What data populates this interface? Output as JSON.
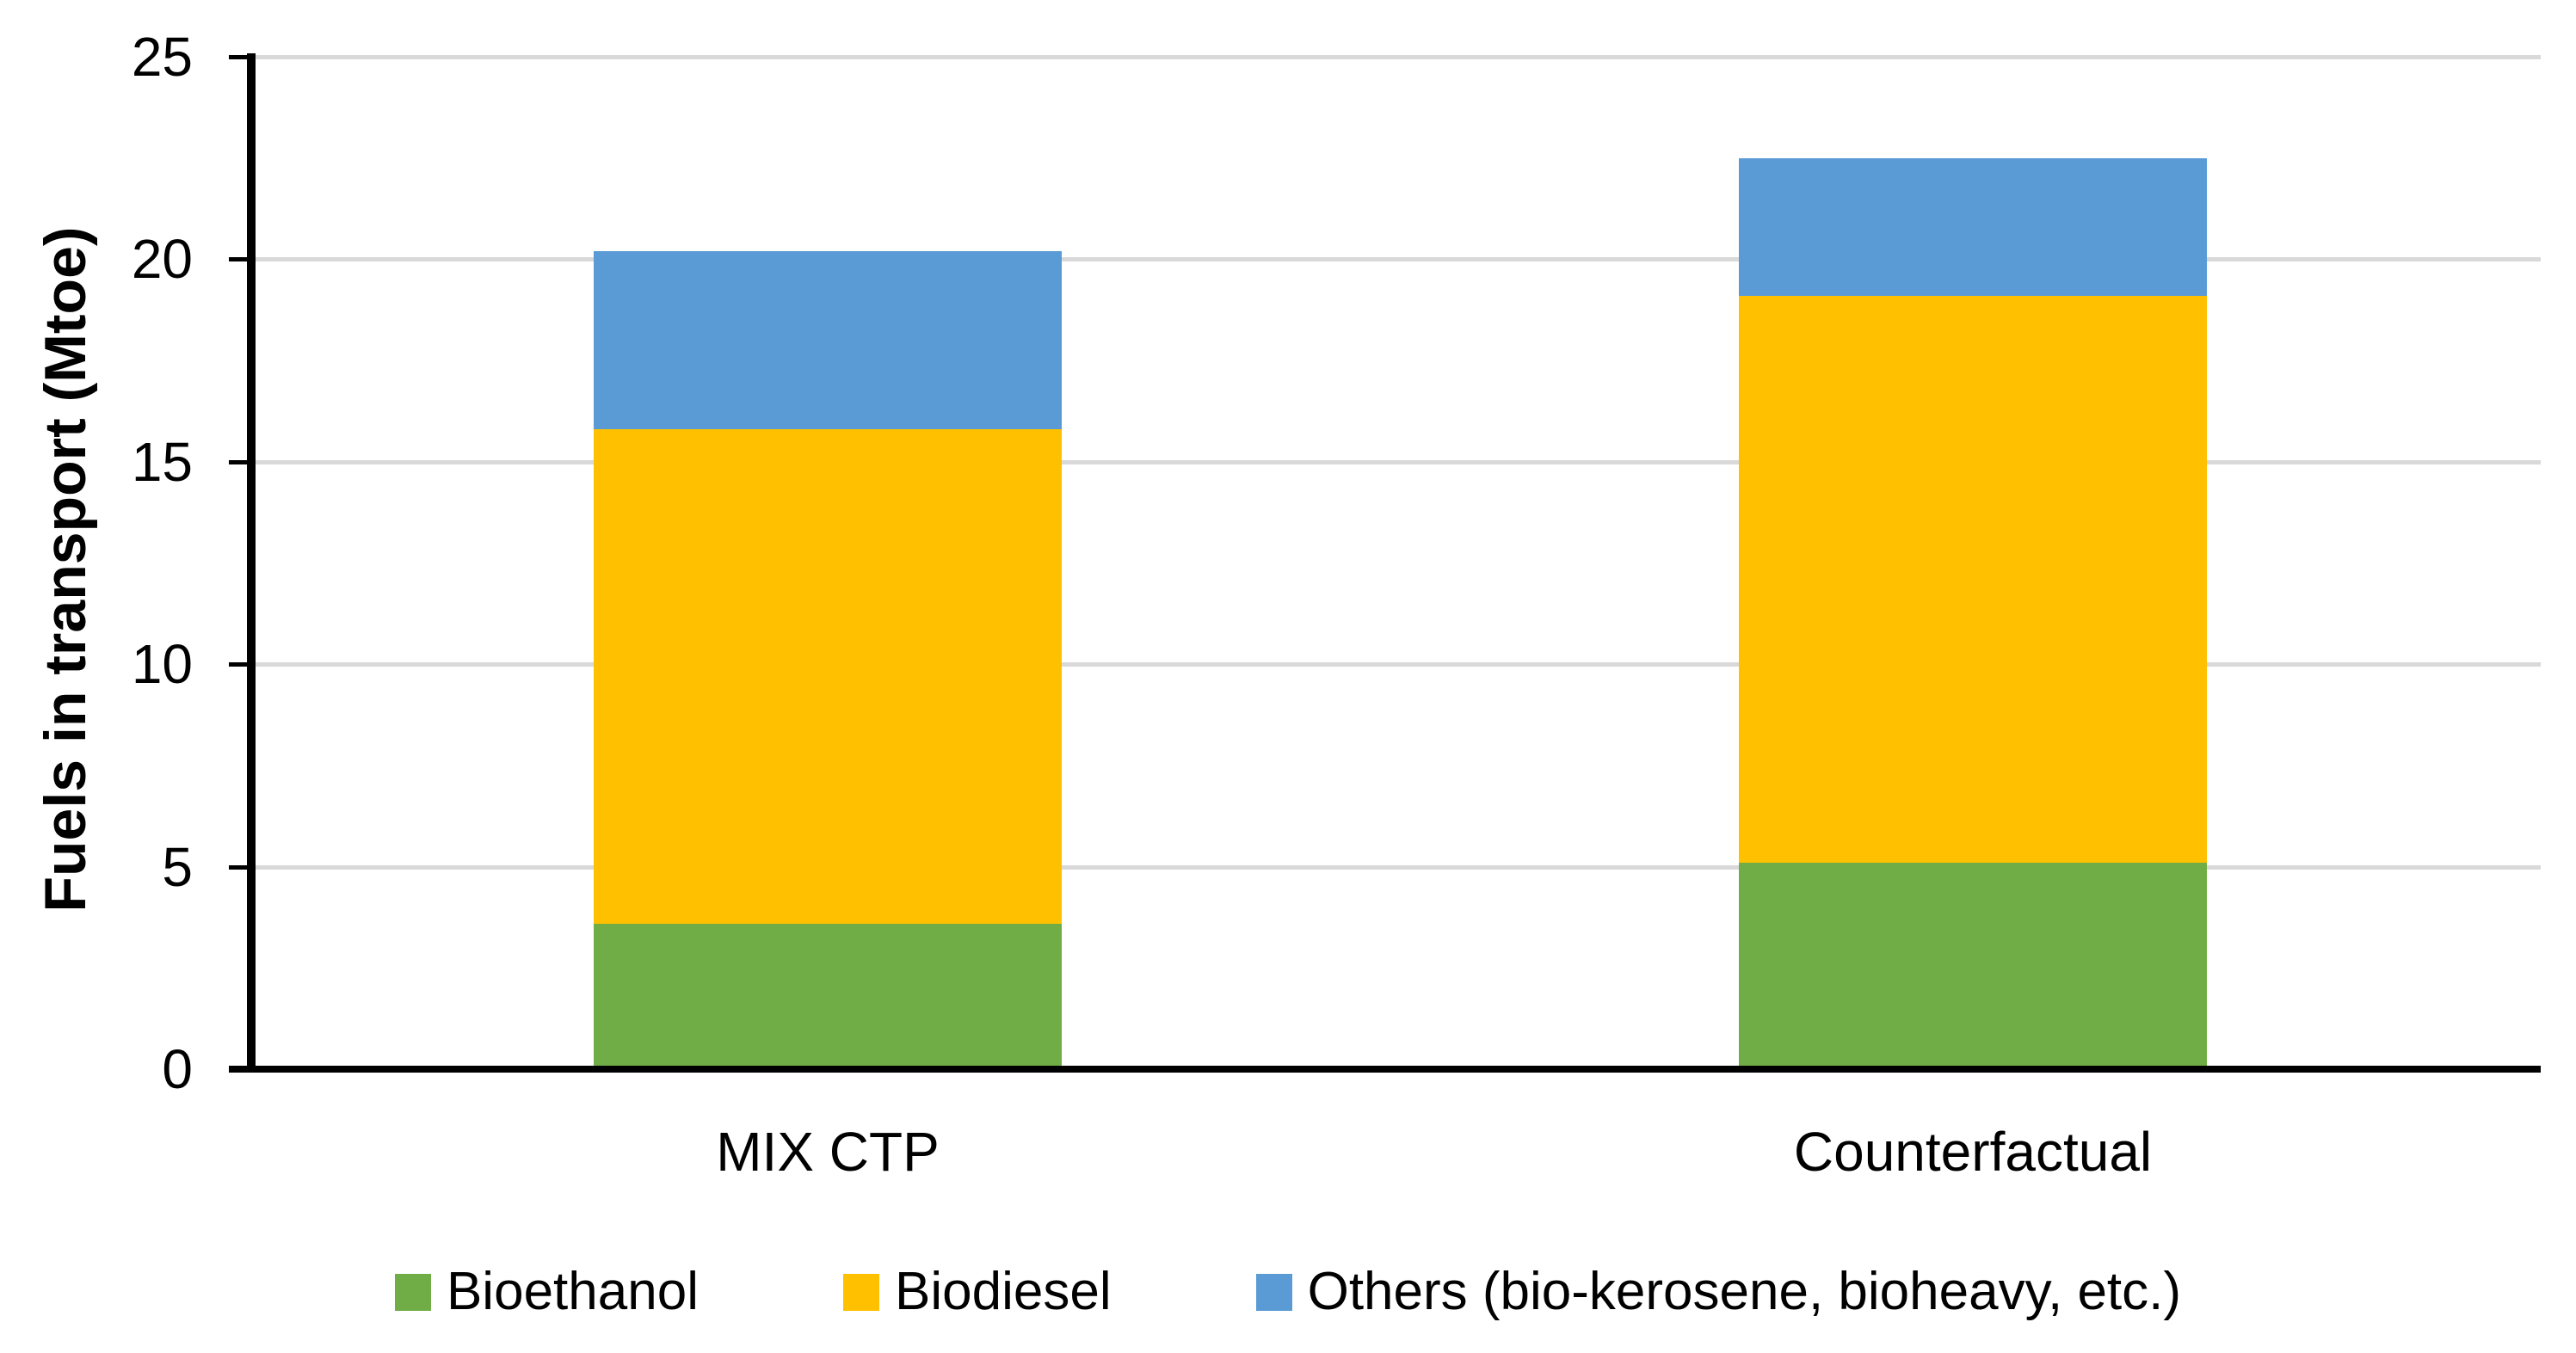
{
  "chart_data": {
    "type": "bar",
    "stacked": true,
    "title": "",
    "xlabel": "",
    "ylabel": "Fuels in transport (Mtoe)",
    "categories": [
      "MIX CTP",
      "Counterfactual"
    ],
    "series": [
      {
        "name": "Bioethanol",
        "color": "#70AD47",
        "values": [
          3.6,
          5.1
        ]
      },
      {
        "name": "Biodiesel",
        "color": "#FFC000",
        "values": [
          12.2,
          14.0
        ]
      },
      {
        "name": "Others (bio-kerosene, bioheavy, etc.)",
        "color": "#5B9BD5",
        "values": [
          4.4,
          3.4
        ]
      }
    ],
    "stack_totals": [
      20.2,
      22.5
    ],
    "ylim": [
      0,
      25
    ],
    "yticks": [
      0,
      5,
      10,
      15,
      20,
      25
    ],
    "grid": "horizontal",
    "gridline_color": "#D9D9D9",
    "axis_color": "#000000",
    "legend_position": "bottom"
  }
}
